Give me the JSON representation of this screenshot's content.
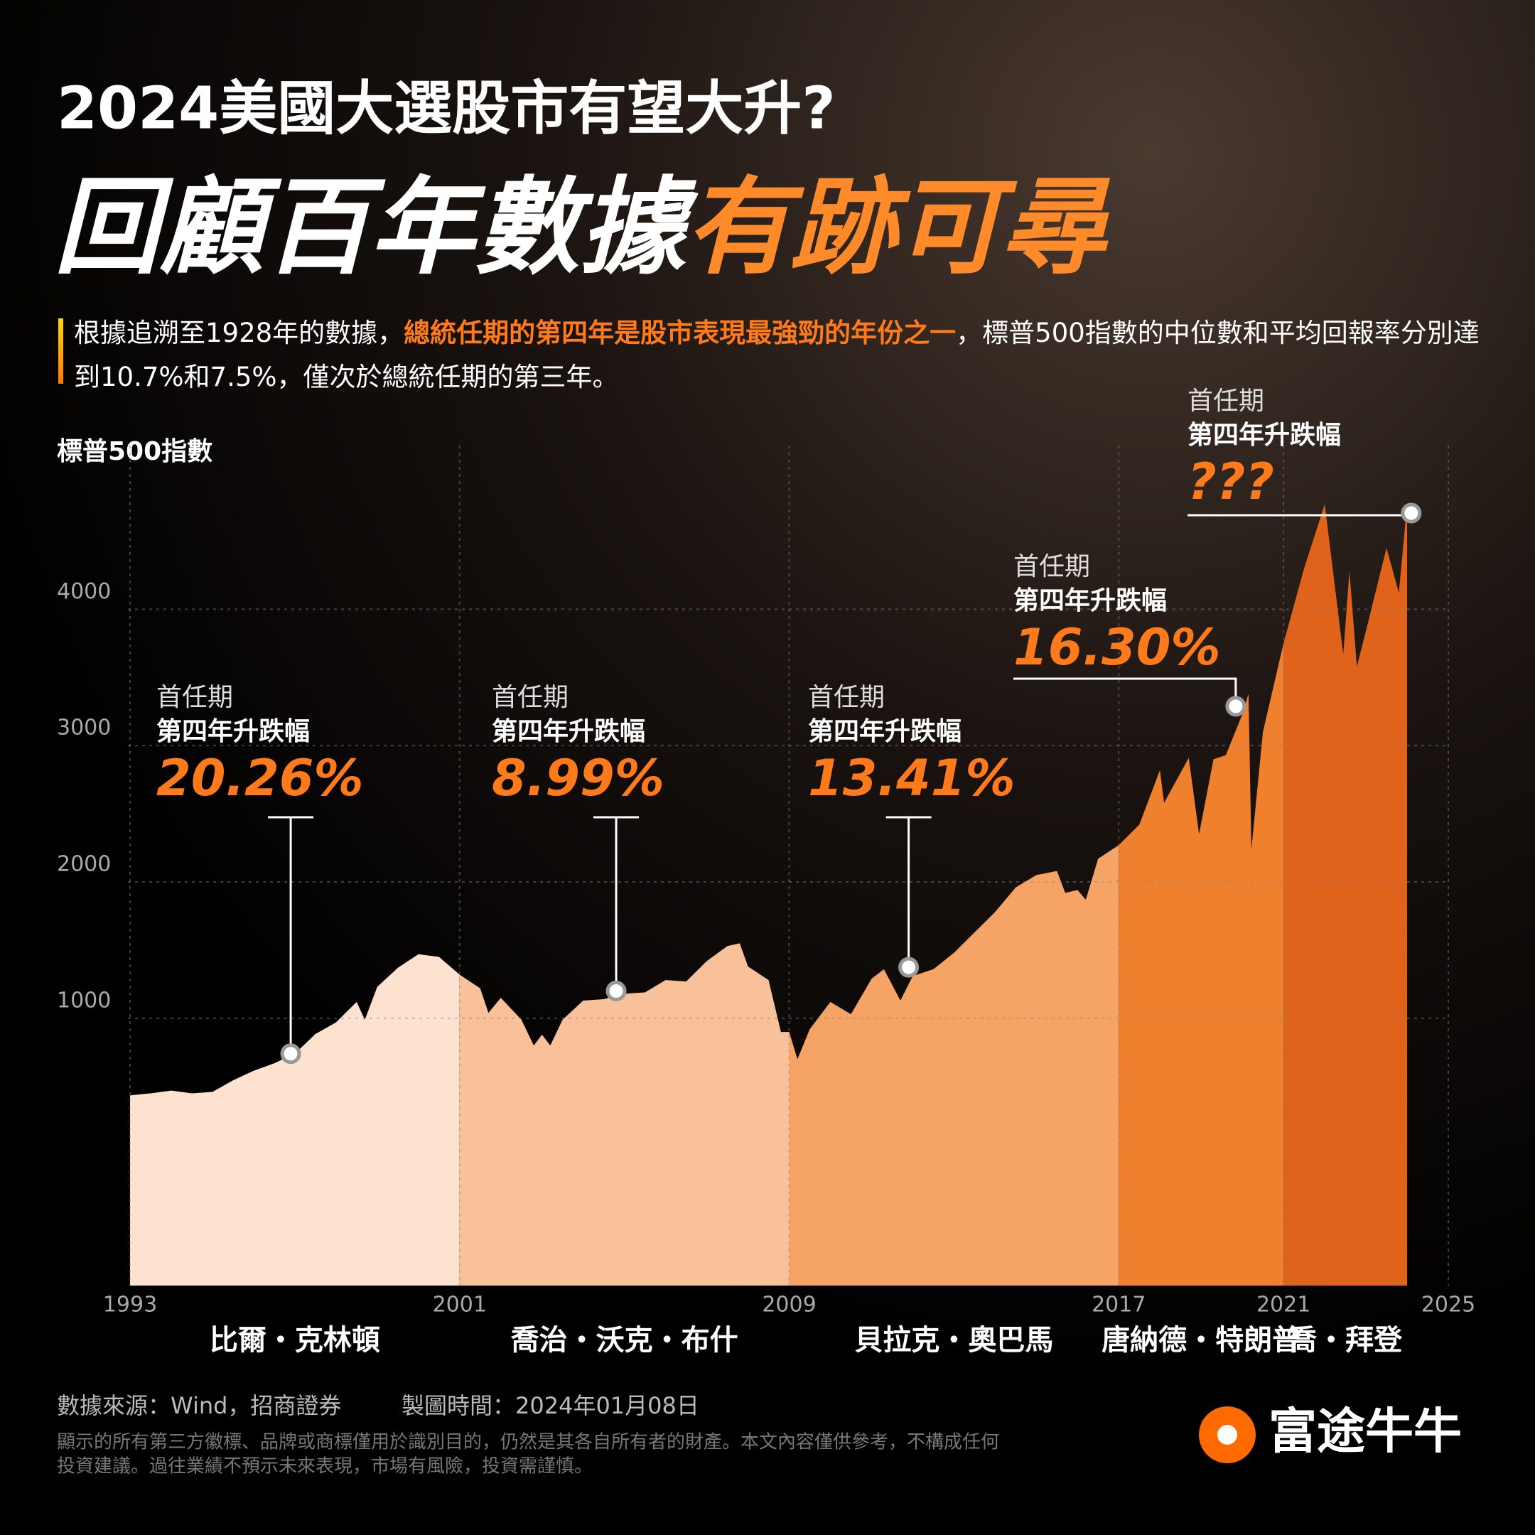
{
  "header": {
    "line1": "2024美國大選股市有望大升?",
    "line2_white": "回顧百年數據",
    "line2_accent": "有跡可尋"
  },
  "intro": {
    "before": "根據追溯至1928年的數據，",
    "highlight": "總統任期的第四年是股市表現最強勁的年份之一",
    "after": "，標普500指數的中位數和平均回報率分別達到10.7%和7.5%，僅次於總統任期的第三年。"
  },
  "chart_data": {
    "type": "area",
    "y_label": "標普500指數",
    "xlim": [
      1993,
      2025
    ],
    "xticks": [
      1993,
      2001,
      2009,
      2017,
      2021,
      2025
    ],
    "ylim": [
      -960,
      5200
    ],
    "yticks": [
      1000,
      2000,
      3000,
      4000
    ],
    "grid": true,
    "series": [
      {
        "name": "比爾・克林頓",
        "color": "#fde3cf",
        "x": [
          1993,
          1993.5,
          1994,
          1994.5,
          1995,
          1995.5,
          1996,
          1996.5,
          1997,
          1997.5,
          1998,
          1998.5,
          1998.7,
          1999,
          1999.5,
          2000,
          2000.5,
          2001
        ],
        "values": [
          435,
          450,
          470,
          450,
          460,
          545,
          615,
          670,
          740,
          885,
          970,
          1120,
          990,
          1230,
          1370,
          1470,
          1450,
          1320
        ],
        "term": "首任期",
        "metric": "第四年升跌幅",
        "change": 20.26,
        "change_label": "20.26%",
        "marker_x": 1996.9,
        "marker_value": 740
      },
      {
        "name": "喬治・沃克・布什",
        "color": "#f9c199",
        "x": [
          2001,
          2001.5,
          2001.7,
          2002,
          2002.5,
          2002.8,
          2003,
          2003.2,
          2003.5,
          2004,
          2004.5,
          2005,
          2005.5,
          2006,
          2006.5,
          2007,
          2007.5,
          2007.8,
          2008,
          2008.5,
          2008.8,
          2009
        ],
        "values": [
          1320,
          1220,
          1040,
          1150,
          990,
          800,
          880,
          800,
          990,
          1130,
          1140,
          1180,
          1190,
          1280,
          1270,
          1420,
          1530,
          1550,
          1380,
          1280,
          900,
          900
        ],
        "term": "首任期",
        "metric": "第四年升跌幅",
        "change": 8.99,
        "change_label": "8.99%",
        "marker_x": 2004.8,
        "marker_value": 1200
      },
      {
        "name": "貝拉克・奧巴馬",
        "color": "#f6a466",
        "x": [
          2009,
          2009.2,
          2009.5,
          2010,
          2010.5,
          2011,
          2011.3,
          2011.7,
          2012,
          2012.5,
          2013,
          2013.5,
          2014,
          2014.5,
          2015,
          2015.5,
          2015.7,
          2016,
          2016.2,
          2016.5,
          2017
        ],
        "values": [
          900,
          700,
          920,
          1120,
          1030,
          1290,
          1360,
          1130,
          1310,
          1360,
          1480,
          1630,
          1780,
          1960,
          2050,
          2080,
          1920,
          1940,
          1870,
          2170,
          2270
        ],
        "term": "首任期",
        "metric": "第四年升跌幅",
        "change": 13.41,
        "change_label": "13.41%",
        "marker_x": 2011.9,
        "marker_value": 1374
      },
      {
        "name": "唐納德・特朗普",
        "color": "#ef802e",
        "x": [
          2017,
          2017.5,
          2018,
          2018.1,
          2018.7,
          2018.95,
          2019.3,
          2019.6,
          2020,
          2020.15,
          2020.22,
          2020.5,
          2021
        ],
        "values": [
          2270,
          2420,
          2820,
          2580,
          2910,
          2350,
          2900,
          2930,
          3230,
          3380,
          2240,
          3100,
          3750
        ],
        "term": "首任期",
        "metric": "第四年升跌幅",
        "change": 16.3,
        "change_label": "16.30%",
        "marker_x": 2019.84,
        "marker_value": 3288
      },
      {
        "name": "喬・拜登",
        "color": "#e0631b",
        "x": [
          2021,
          2021.5,
          2022,
          2022.45,
          2022.6,
          2022.78,
          2023,
          2023.5,
          2023.8,
          2024
        ],
        "values": [
          3750,
          4300,
          4770,
          3670,
          4280,
          3580,
          3840,
          4450,
          4120,
          4770
        ],
        "term": "首任期",
        "metric": "第四年升跌幅",
        "change_label": "???",
        "marker_x": 2024.1,
        "marker_value": 4705
      }
    ]
  },
  "footer": {
    "source": "數據來源：Wind，招商證券",
    "date": "製圖時間：2024年01月08日",
    "disclaimer1": "顯示的所有第三方徽標、品牌或商標僅用於識別目的，仍然是其各自所有者的財產。本文內容僅供參考，不構成任何",
    "disclaimer2": "投資建議。過往業績不預示未來表現，市場有風險，投資需謹慎。",
    "brand": "富途牛牛"
  }
}
